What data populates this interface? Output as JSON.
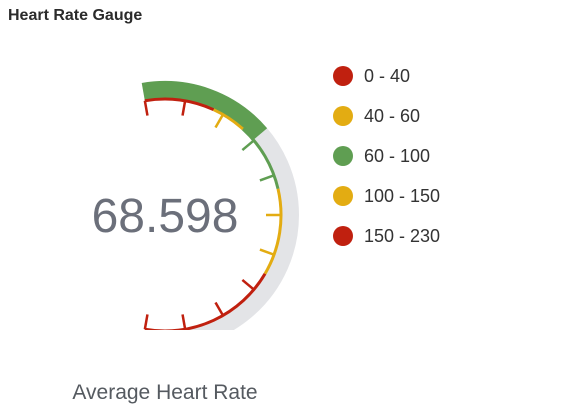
{
  "panel": {
    "title": "Heart Rate Gauge"
  },
  "chart_data": {
    "type": "gauge",
    "title": "Heart Rate Gauge",
    "caption": "Average Heart Rate",
    "value": 68.598,
    "value_label": "68.598",
    "min": 0,
    "max": 230,
    "ranges": [
      {
        "label": "0 - 40",
        "from": 0,
        "to": 40,
        "color": "#c0200f"
      },
      {
        "label": "40 - 60",
        "from": 40,
        "to": 60,
        "color": "#e3ac12"
      },
      {
        "label": "60 - 100",
        "from": 60,
        "to": 100,
        "color": "#5f9e52"
      },
      {
        "label": "100 - 150",
        "from": 100,
        "to": 150,
        "color": "#e3ac12"
      },
      {
        "label": "150 - 230",
        "from": 150,
        "to": 230,
        "color": "#c0200f"
      }
    ],
    "track_color": "#e3e4e7",
    "value_arc_color": "#5f9e52",
    "legend_position": "right"
  }
}
